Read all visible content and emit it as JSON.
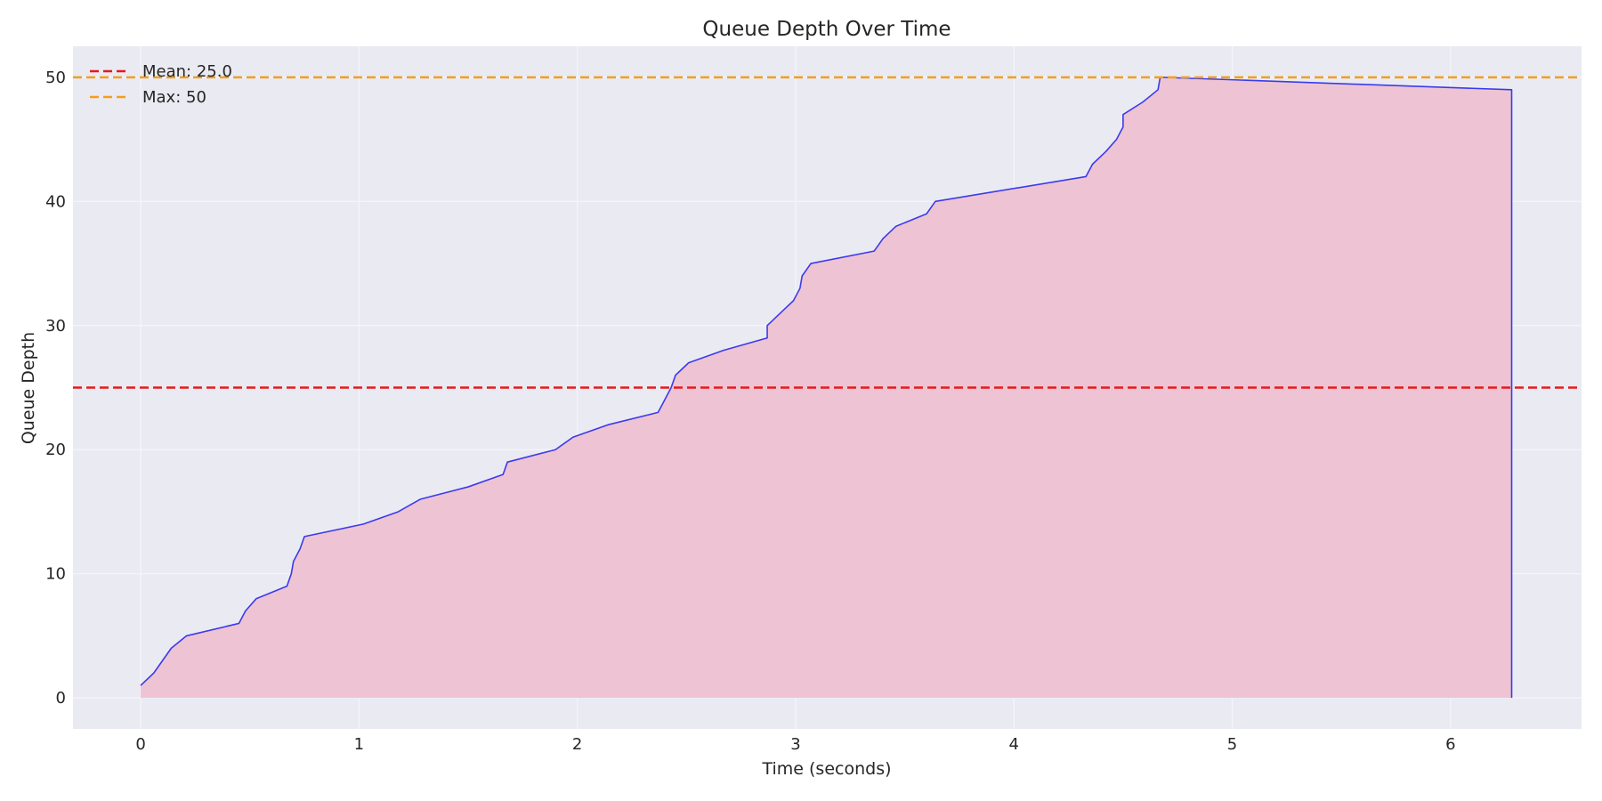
{
  "chart_data": {
    "type": "area",
    "title": "Queue Depth Over Time",
    "xlabel": "Time (seconds)",
    "ylabel": "Queue Depth",
    "xlim": [
      -0.31,
      6.6
    ],
    "ylim": [
      -2.5,
      52.5
    ],
    "xticks": [
      0,
      1,
      2,
      3,
      4,
      5,
      6
    ],
    "yticks": [
      0,
      10,
      20,
      30,
      40,
      50
    ],
    "grid": true,
    "legend_position": "top-left",
    "colors": {
      "plot_background": "#EAEAF2",
      "line": "#3B3BEA",
      "fill": "#EEC4D4",
      "mean_line": "#E8191A",
      "max_line": "#F59E1A",
      "grid": "#F5F5FA"
    },
    "series": [
      {
        "x": [
          0,
          0.06,
          0.14,
          0.21,
          0.45,
          0.48,
          0.53,
          0.67,
          0.69,
          0.7,
          0.73,
          0.75,
          1.02,
          1.18,
          1.28,
          1.5,
          1.66,
          1.68,
          1.9,
          1.98,
          2.14,
          2.37,
          2.4,
          2.43,
          2.45,
          2.51,
          2.67,
          2.87,
          2.87,
          2.93,
          2.99,
          3.02,
          3.03,
          3.07,
          3.36,
          3.4,
          3.46,
          3.6,
          3.64,
          4.33,
          4.36,
          4.42,
          4.47,
          4.5,
          4.5,
          4.59,
          4.66,
          4.67,
          4.68,
          6.28,
          6.28
        ],
        "y": [
          1,
          2,
          4,
          5,
          6,
          7,
          8,
          9,
          10,
          11,
          12,
          13,
          14,
          15,
          16,
          17,
          18,
          19,
          20,
          21,
          22,
          23,
          24,
          25,
          26,
          27,
          28,
          29,
          30,
          31,
          32,
          33,
          34,
          35,
          36,
          37,
          38,
          39,
          40,
          42,
          43,
          44,
          45,
          46,
          47,
          48,
          49,
          50,
          50,
          49,
          0
        ]
      }
    ],
    "reference_lines": [
      {
        "name": "Mean: 25.0",
        "y": 25
      },
      {
        "name": "Max: 50",
        "y": 50
      }
    ]
  }
}
